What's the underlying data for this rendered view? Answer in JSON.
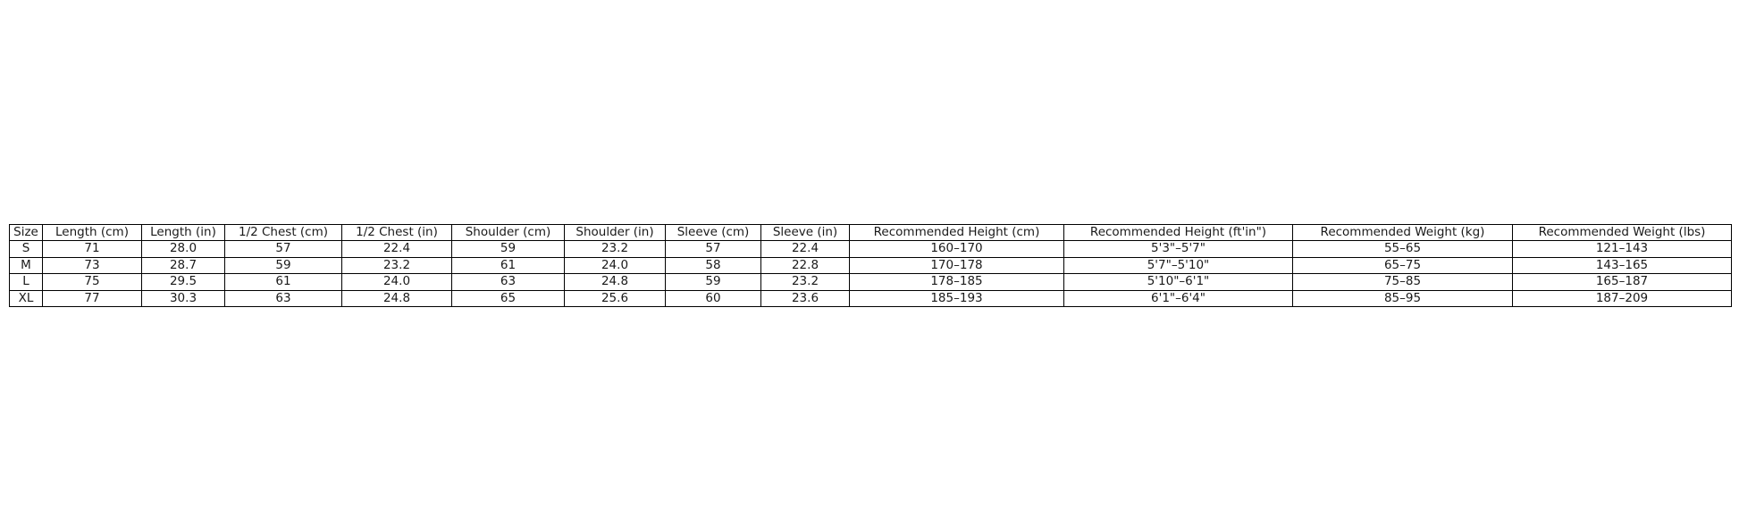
{
  "page": {
    "background_color": "#ffffff"
  },
  "chart_data": {
    "type": "table",
    "title": "",
    "columns": [
      "Size",
      "Length (cm)",
      "Length (in)",
      "1/2 Chest (cm)",
      "1/2 Chest (in)",
      "Shoulder (cm)",
      "Shoulder (in)",
      "Sleeve (cm)",
      "Sleeve (in)",
      "Recommended Height (cm)",
      "Recommended Height (ft'in\")",
      "Recommended Weight (kg)",
      "Recommended Weight (lbs)"
    ],
    "rows": [
      [
        "S",
        "71",
        "28.0",
        "57",
        "22.4",
        "59",
        "23.2",
        "57",
        "22.4",
        "160–170",
        "5'3\"–5'7\"",
        "55–65",
        "121–143"
      ],
      [
        "M",
        "73",
        "28.7",
        "59",
        "23.2",
        "61",
        "24.0",
        "58",
        "22.8",
        "170–178",
        "5'7\"–5'10\"",
        "65–75",
        "143–165"
      ],
      [
        "L",
        "75",
        "29.5",
        "61",
        "24.0",
        "63",
        "24.8",
        "59",
        "23.2",
        "178–185",
        "5'10\"–6'1\"",
        "75–85",
        "165–187"
      ],
      [
        "XL",
        "77",
        "30.3",
        "63",
        "24.8",
        "65",
        "25.6",
        "60",
        "23.6",
        "185–193",
        "6'1\"–6'4\"",
        "85–95",
        "187–209"
      ]
    ],
    "colors": {
      "border": "#000000",
      "text": "#1a1a1a",
      "background": "#ffffff"
    }
  }
}
